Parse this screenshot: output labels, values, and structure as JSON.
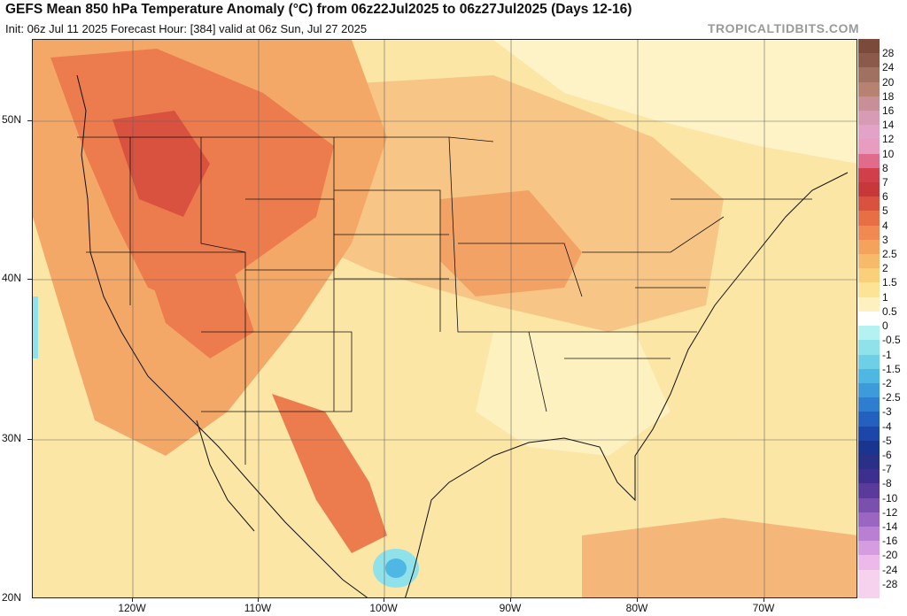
{
  "header": {
    "title": "GEFS Mean 850 hPa Temperature Anomaly (°C) from 06z22Jul2025 to 06z27Jul2025 (Days 12-16)",
    "subtitle": "Init: 06z Jul 11 2025   Forecast Hour: [384]   valid at 06z Sun, Jul 27 2025",
    "brand": "TROPICALTIDBITS.COM"
  },
  "axes": {
    "lat_labels": [
      "50N",
      "40N",
      "30N",
      "20N"
    ],
    "lon_labels": [
      "120W",
      "110W",
      "100W",
      "90W",
      "80W",
      "70W"
    ]
  },
  "colorbar": {
    "labels": [
      "28",
      "24",
      "20",
      "18",
      "16",
      "14",
      "12",
      "10",
      "8",
      "7",
      "6",
      "5",
      "4",
      "3",
      "2.5",
      "2",
      "1.5",
      "1",
      "0.5",
      "0",
      "-0.5",
      "-1",
      "-1.5",
      "-2",
      "-2.5",
      "-3",
      "-4",
      "-5",
      "-6",
      "-7",
      "-8",
      "-10",
      "-12",
      "-14",
      "-16",
      "-20",
      "-24",
      "-28"
    ],
    "colors": [
      "#7b4a3a",
      "#8c5a4a",
      "#a07060",
      "#b88272",
      "#c88f99",
      "#d79bb5",
      "#e3a3c8",
      "#e89cc0",
      "#e06b8a",
      "#d1404a",
      "#c8383a",
      "#d9513f",
      "#e86e46",
      "#f08a52",
      "#f5a25d",
      "#f7b96a",
      "#fad07b",
      "#fce396",
      "#fdf1c0",
      "#ffffff",
      "#b4f1f1",
      "#8fe2ea",
      "#6dd0e6",
      "#4fb7e4",
      "#3d9bdc",
      "#2f7dd1",
      "#2460c0",
      "#1c47a8",
      "#1a3590",
      "#2a2f88",
      "#3d2f8f",
      "#5a3a9a",
      "#7a4fae",
      "#9a66c2",
      "#b97fd2",
      "#d69ce0",
      "#edb9ea",
      "#f7d2ee"
    ]
  }
}
